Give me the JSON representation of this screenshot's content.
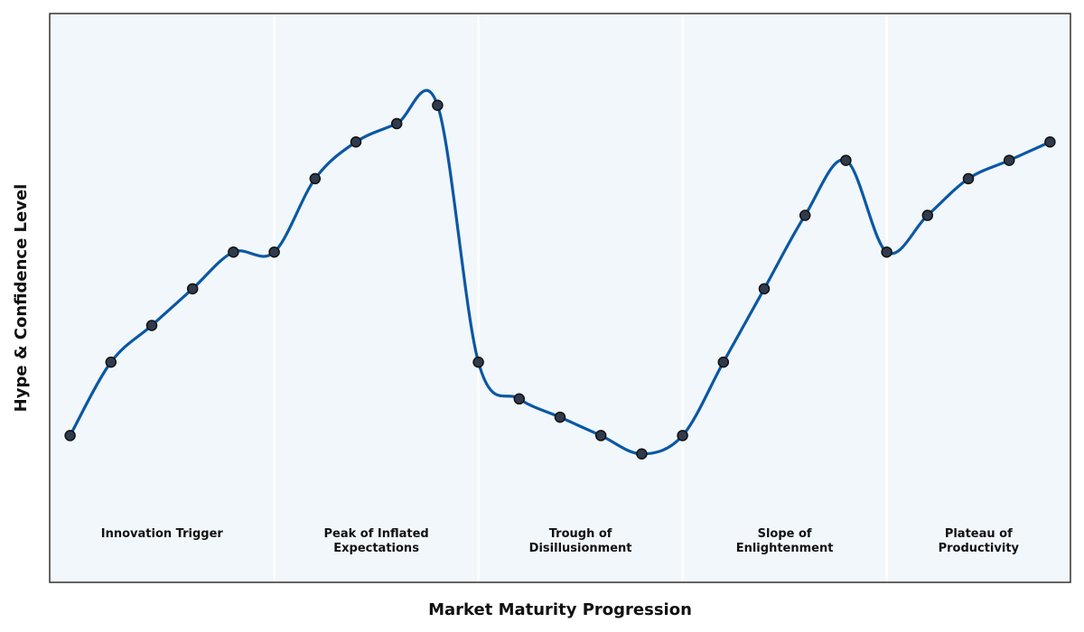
{
  "chart_data": {
    "type": "line",
    "xlabel": "Market Maturity Progression",
    "ylabel": "Hype & Confidence Level",
    "xlim": [
      0,
      25
    ],
    "ylim": [
      0,
      31
    ],
    "grid": false,
    "legend": "none",
    "phases": [
      {
        "label_lines": [
          "Innovation Trigger"
        ],
        "x_start": 0,
        "x_end": 5.5
      },
      {
        "label_lines": [
          "Peak of Inflated",
          "Expectations"
        ],
        "x_start": 5.5,
        "x_end": 10.5
      },
      {
        "label_lines": [
          "Trough of",
          "Disillusionment"
        ],
        "x_start": 10.5,
        "x_end": 15.5
      },
      {
        "label_lines": [
          "Slope of",
          "Enlightenment"
        ],
        "x_start": 15.5,
        "x_end": 20.5
      },
      {
        "label_lines": [
          "Plateau of",
          "Productivity"
        ],
        "x_start": 20.5,
        "x_end": 25
      }
    ],
    "series": [
      {
        "x": [
          0.5,
          1.5,
          2.5,
          3.5,
          4.5,
          5.5,
          6.5,
          7.5,
          8.5,
          9.5,
          10.5,
          11.5,
          12.5,
          13.5,
          14.5,
          15.5,
          16.5,
          17.5,
          18.5,
          19.5,
          20.5,
          21.5,
          22.5,
          23.5,
          24.5
        ],
        "values": [
          8,
          12,
          14,
          16,
          18,
          18,
          22,
          24,
          25,
          26,
          12,
          10,
          9,
          8,
          7,
          8,
          12,
          16,
          20,
          23,
          18,
          20,
          22,
          23,
          24
        ]
      }
    ],
    "colors": {
      "line": "#0a58a3",
      "marker_fill": "#2f3b4c",
      "marker_edge": "#111111",
      "plot_background": "#f2f7fc",
      "phase_divider": "#ffffff",
      "frame": "#333333"
    }
  }
}
